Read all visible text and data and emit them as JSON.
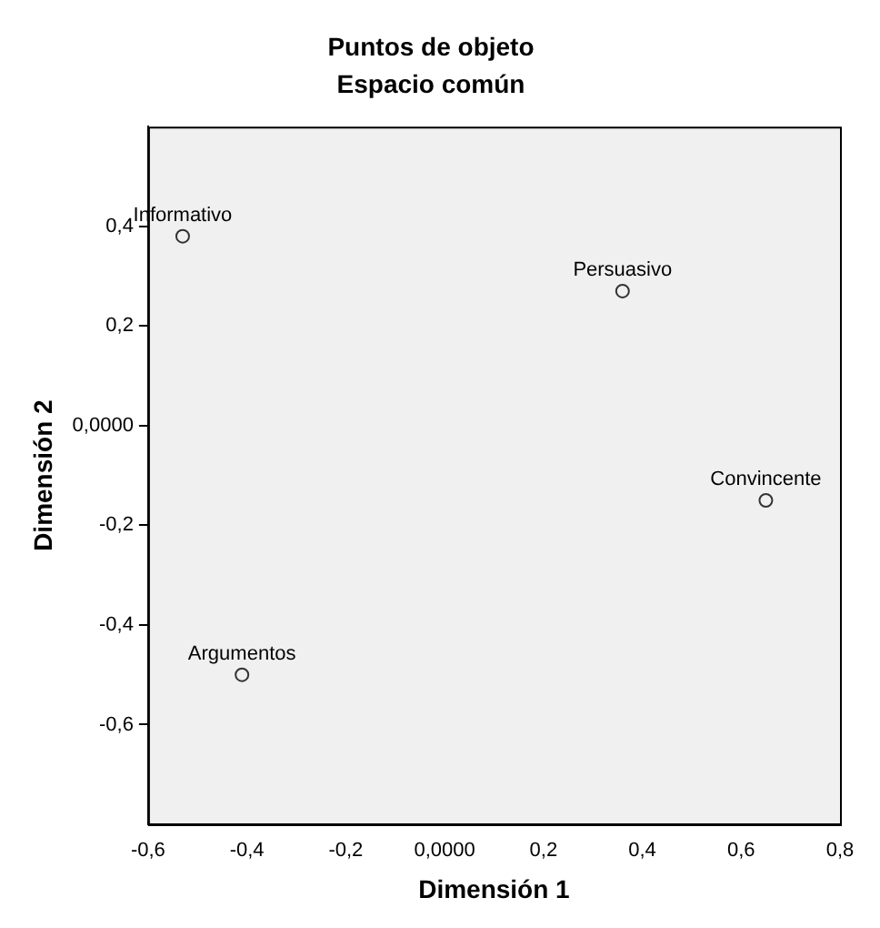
{
  "chart_data": {
    "type": "scatter",
    "title": "Puntos de objeto",
    "subtitle": "Espacio común",
    "xlabel": "Dimensión 1",
    "ylabel": "Dimensión 2",
    "x": [
      -0.53,
      0.36,
      0.65,
      -0.41
    ],
    "values": [
      0.38,
      0.27,
      -0.15,
      -0.5
    ],
    "color": "#333333",
    "marker": "circle",
    "grid": false,
    "legend": false,
    "xlim": [
      -0.6,
      0.8
    ],
    "ylim": [
      -0.8,
      0.6
    ],
    "xticks": [
      {
        "value": -0.6,
        "label": "-0,6"
      },
      {
        "value": -0.4,
        "label": "-0,4"
      },
      {
        "value": -0.2,
        "label": "-0,2"
      },
      {
        "value": 0,
        "label": "0,0000"
      },
      {
        "value": 0.2,
        "label": "0,2"
      },
      {
        "value": 0.4,
        "label": "0,4"
      },
      {
        "value": 0.6,
        "label": "0,6"
      },
      {
        "value": 0.8,
        "label": "0,8"
      }
    ],
    "yticks": [
      {
        "value": -0.6,
        "label": "-0,6"
      },
      {
        "value": -0.4,
        "label": "-0,4"
      },
      {
        "value": -0.2,
        "label": "-0,2"
      },
      {
        "value": 0,
        "label": "0,0000"
      },
      {
        "value": 0.2,
        "label": "0,2"
      },
      {
        "value": 0.4,
        "label": "0,4"
      }
    ],
    "annotations": [
      {
        "text": "Informativo",
        "x": -0.53,
        "y": 0.38
      },
      {
        "text": "Persuasivo",
        "x": 0.36,
        "y": 0.27
      },
      {
        "text": "Convincente",
        "x": 0.65,
        "y": -0.15
      },
      {
        "text": "Argumentos",
        "x": -0.41,
        "y": -0.5
      }
    ]
  }
}
